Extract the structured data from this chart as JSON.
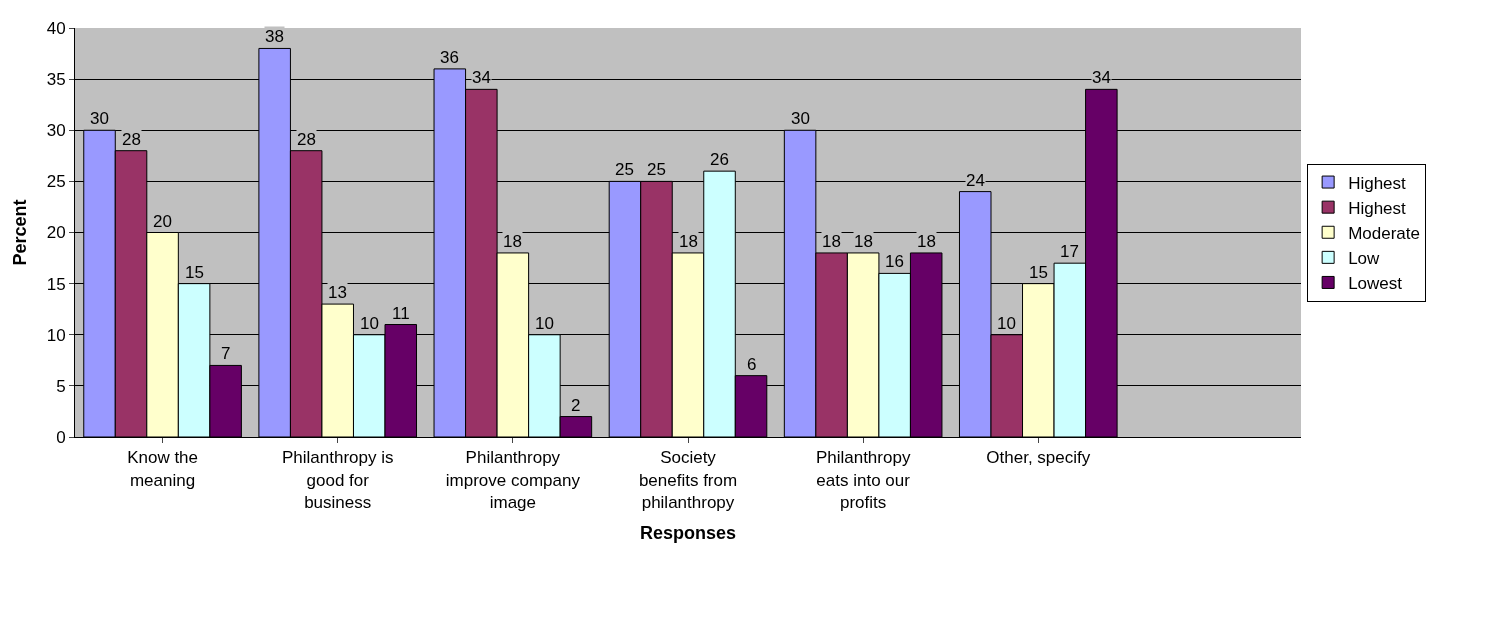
{
  "chart_data": {
    "type": "bar",
    "xlabel": "Responses",
    "ylabel": "Percent",
    "categories": [
      "Know the meaning",
      "Philanthropy is good for business",
      "Philanthropy improve company image",
      "Society benefits from philanthropy",
      "Philanthropy eats into our profits",
      "Other, specify",
      null
    ],
    "series": [
      {
        "name": "Highest",
        "color": "#9999ff",
        "values": [
          30,
          38,
          36,
          25,
          30,
          24,
          null
        ]
      },
      {
        "name": "Highest",
        "color": "#993366",
        "values": [
          28,
          28,
          34,
          25,
          18,
          10,
          null
        ]
      },
      {
        "name": "Moderate",
        "color": "#ffffcc",
        "values": [
          20,
          13,
          18,
          18,
          18,
          15,
          null
        ]
      },
      {
        "name": "Low",
        "color": "#ccffff",
        "values": [
          15,
          10,
          10,
          26,
          16,
          17,
          null
        ]
      },
      {
        "name": "Lowest",
        "color": "#660066",
        "values": [
          7,
          11,
          2,
          6,
          18,
          34,
          null
        ]
      }
    ],
    "ylim": [
      0,
      40
    ],
    "yticks": [
      0,
      5,
      10,
      15,
      20,
      25,
      30,
      35,
      40
    ],
    "grid": "y",
    "legend": "right",
    "data_labels": true
  }
}
